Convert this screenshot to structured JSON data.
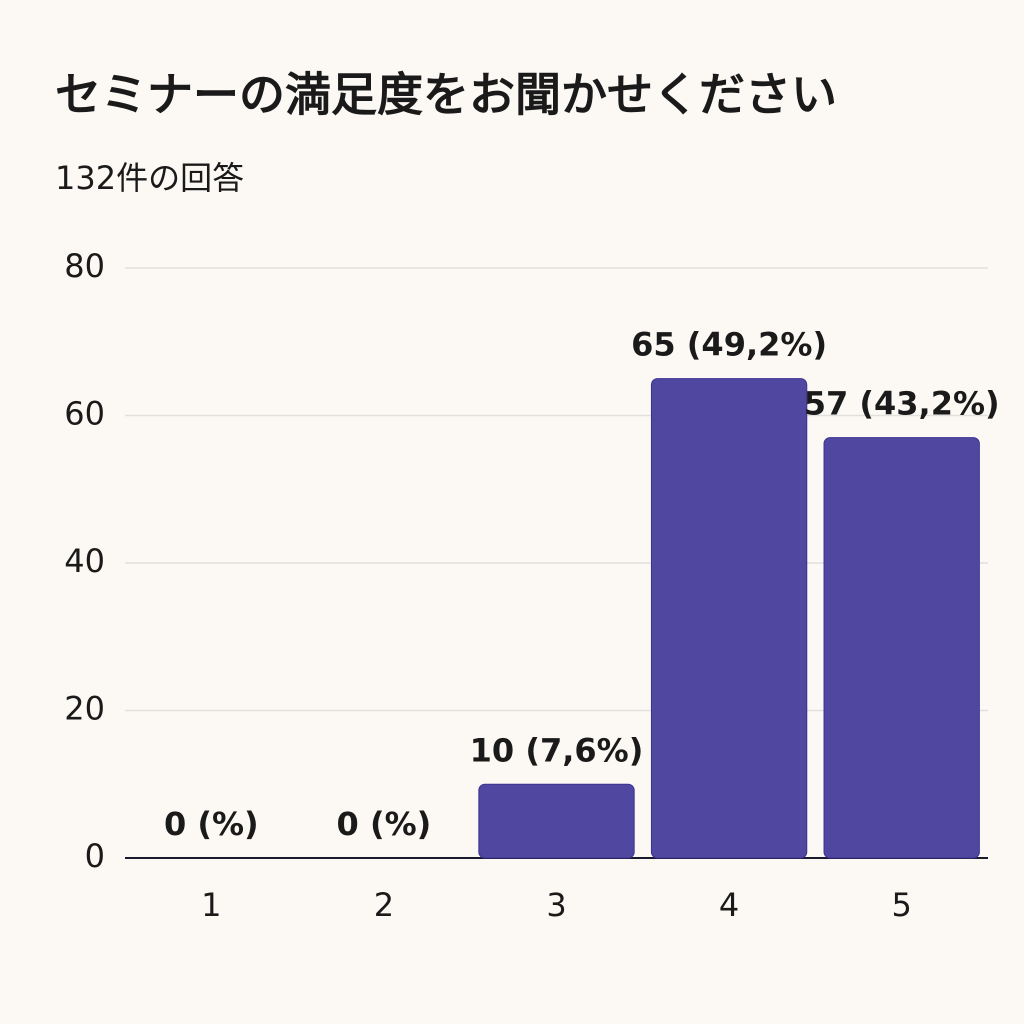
{
  "chart_data": {
    "type": "bar",
    "title": "セミナーの満足度をお聞かせください",
    "subtitle": "132件の回答",
    "categories": [
      "1",
      "2",
      "3",
      "4",
      "5"
    ],
    "values": [
      0,
      0,
      10,
      65,
      57
    ],
    "value_labels": [
      "0 (%)",
      "0 (%)",
      "10 (7,6%)",
      "65 (49,2%)",
      "57 (43,2%)"
    ],
    "color": "#5048a0",
    "ylim": [
      0,
      80
    ],
    "yticks": [
      0,
      20,
      40,
      60,
      80
    ],
    "grid": true
  }
}
